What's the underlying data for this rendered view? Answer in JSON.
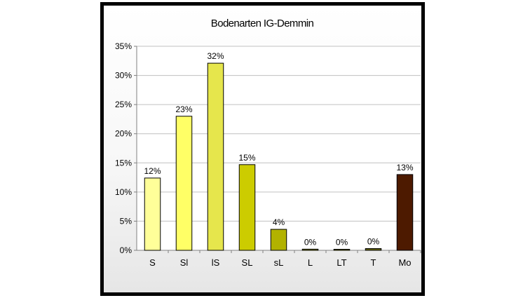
{
  "chart_data": {
    "type": "bar",
    "title": "Bodenarten IG-Demmin",
    "xlabel": "",
    "ylabel": "",
    "categories": [
      "S",
      "Sl",
      "lS",
      "SL",
      "sL",
      "L",
      "LT",
      "T",
      "Mo"
    ],
    "values": [
      12.4,
      23.0,
      32.1,
      14.7,
      3.6,
      0.2,
      0.1,
      0.3,
      13.0
    ],
    "data_labels": [
      "12%",
      "23%",
      "32%",
      "15%",
      "4%",
      "0%",
      "0%",
      "0%",
      "13%"
    ],
    "ylim": [
      0,
      35
    ],
    "yticks": [
      0,
      5,
      10,
      15,
      20,
      25,
      30,
      35
    ],
    "ytick_labels": [
      "0%",
      "5%",
      "10%",
      "15%",
      "20%",
      "25%",
      "30%",
      "35%"
    ],
    "grid": true,
    "legend": "none",
    "colors": [
      "#FFFF99",
      "#FFFF66",
      "#E6E64C",
      "#CCCC00",
      "#B2B200",
      "#808000",
      "#6B6B00",
      "#666600",
      "#4D1A00"
    ],
    "plot_background": "#FFFFFF",
    "gridline_color": "#C0C0C0"
  }
}
